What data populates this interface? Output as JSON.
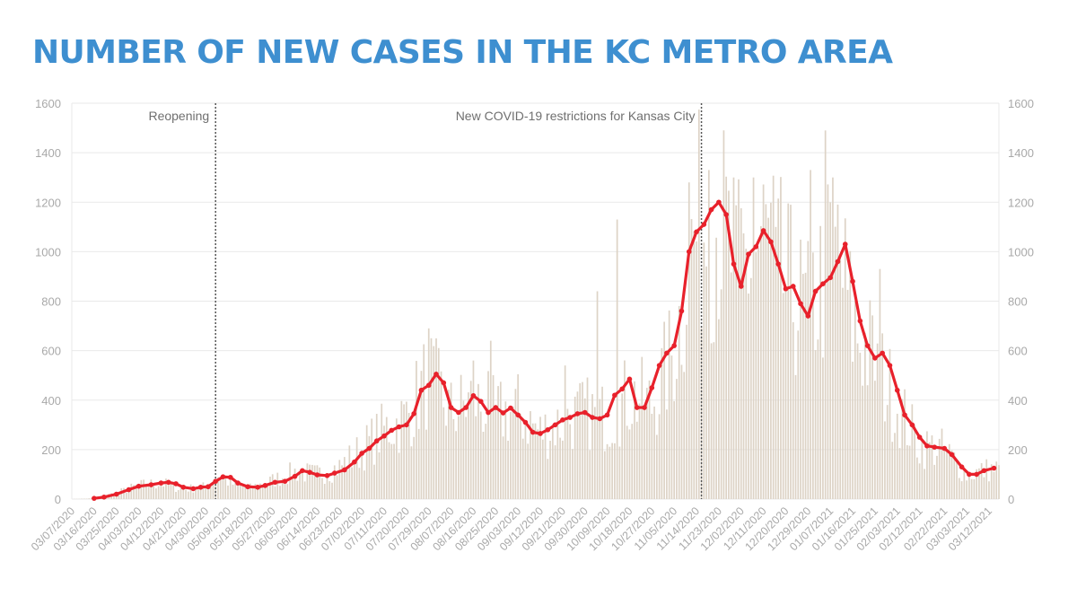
{
  "title": "NUMBER OF NEW CASES IN THE KC METRO AREA",
  "colors": {
    "title": "#3e8fd0",
    "line": "#e8212b",
    "bars": "#ddd3c6",
    "grid": "#e9e9e9",
    "event_line": "#555555"
  },
  "chart_data": {
    "type": "bar+line",
    "title": "NUMBER OF NEW CASES IN THE KC METRO AREA",
    "xlabel": "",
    "ylabel": "",
    "ylim": [
      0,
      1600
    ],
    "yticks": [
      0,
      200,
      400,
      600,
      800,
      1000,
      1200,
      1400,
      1600
    ],
    "y_axis_sides": "left and right",
    "grid": true,
    "x_start": "2020-03-07",
    "x_end": "2021-03-16",
    "xticks": [
      "03/07/2020",
      "03/16/2020",
      "03/25/2020",
      "04/03/2020",
      "04/12/2020",
      "04/21/2020",
      "04/30/2020",
      "05/09/2020",
      "05/18/2020",
      "05/27/2020",
      "06/05/2020",
      "06/14/2020",
      "06/23/2020",
      "07/02/2020",
      "07/11/2020",
      "07/20/2020",
      "07/29/2020",
      "08/07/2020",
      "08/16/2020",
      "08/25/2020",
      "09/03/2020",
      "09/12/2020",
      "09/21/2020",
      "09/30/2020",
      "10/09/2020",
      "10/18/2020",
      "10/27/2020",
      "11/05/2020",
      "11/14/2020",
      "11/23/2020",
      "12/02/2020",
      "12/11/2020",
      "12/20/2020",
      "12/29/2020",
      "01/07/2021",
      "01/16/2021",
      "01/25/2021",
      "02/03/2021",
      "02/12/2021",
      "02/22/2021",
      "03/03/2021",
      "03/12/2021"
    ],
    "annotations": [
      {
        "date": "2020-05-04",
        "label": "Reopening"
      },
      {
        "date": "2020-11-16",
        "label": "New COVID-19 restrictions for Kansas City"
      }
    ],
    "series": [
      {
        "kind": "bar",
        "description": "daily new cases (approximate, read from bars)",
        "anchors": [
          [
            "2020-03-07",
            0
          ],
          [
            "2020-03-16",
            3
          ],
          [
            "2020-03-25",
            25
          ],
          [
            "2020-04-03",
            55
          ],
          [
            "2020-04-12",
            65
          ],
          [
            "2020-04-21",
            40
          ],
          [
            "2020-04-30",
            50
          ],
          [
            "2020-05-05",
            95
          ],
          [
            "2020-05-12",
            55
          ],
          [
            "2020-05-18",
            45
          ],
          [
            "2020-05-27",
            75
          ],
          [
            "2020-06-05",
            110
          ],
          [
            "2020-06-14",
            100
          ],
          [
            "2020-06-23",
            130
          ],
          [
            "2020-07-02",
            200
          ],
          [
            "2020-07-11",
            280
          ],
          [
            "2020-07-20",
            330
          ],
          [
            "2020-07-29",
            500
          ],
          [
            "2020-08-07",
            350
          ],
          [
            "2020-08-16",
            400
          ],
          [
            "2020-08-25",
            340
          ],
          [
            "2020-09-03",
            360
          ],
          [
            "2020-09-12",
            270
          ],
          [
            "2020-09-21",
            310
          ],
          [
            "2020-09-30",
            350
          ],
          [
            "2020-10-09",
            330
          ],
          [
            "2020-10-18",
            420
          ],
          [
            "2020-10-27",
            380
          ],
          [
            "2020-11-05",
            600
          ],
          [
            "2020-11-12",
            1000
          ],
          [
            "2020-11-16",
            1120
          ],
          [
            "2020-11-23",
            1150
          ],
          [
            "2020-11-30",
            900
          ],
          [
            "2020-12-08",
            1000
          ],
          [
            "2020-12-11",
            1060
          ],
          [
            "2020-12-20",
            860
          ],
          [
            "2020-12-29",
            740
          ],
          [
            "2021-01-03",
            870
          ],
          [
            "2021-01-10",
            1000
          ],
          [
            "2021-01-16",
            700
          ],
          [
            "2021-01-25",
            560
          ],
          [
            "2021-02-03",
            380
          ],
          [
            "2021-02-12",
            220
          ],
          [
            "2021-02-22",
            200
          ],
          [
            "2021-03-03",
            100
          ],
          [
            "2021-03-12",
            120
          ],
          [
            "2021-03-16",
            120
          ]
        ],
        "spikes": [
          [
            "2020-07-29",
            690
          ],
          [
            "2020-08-16",
            560
          ],
          [
            "2020-08-23",
            640
          ],
          [
            "2020-09-22",
            540
          ],
          [
            "2020-10-05",
            840
          ],
          [
            "2020-10-13",
            1130
          ],
          [
            "2020-11-11",
            1280
          ],
          [
            "2020-11-19",
            1330
          ],
          [
            "2020-11-29",
            1300
          ],
          [
            "2020-12-07",
            1300
          ],
          [
            "2020-12-16",
            1100
          ],
          [
            "2020-12-30",
            1330
          ],
          [
            "2021-01-05",
            1490
          ],
          [
            "2021-01-08",
            1300
          ],
          [
            "2021-01-27",
            930
          ]
        ]
      },
      {
        "kind": "line",
        "description": "7-day average of new cases (approximate)",
        "points": [
          [
            "2020-03-16",
            3
          ],
          [
            "2020-03-20",
            8
          ],
          [
            "2020-03-25",
            20
          ],
          [
            "2020-03-30",
            38
          ],
          [
            "2020-04-03",
            52
          ],
          [
            "2020-04-08",
            58
          ],
          [
            "2020-04-12",
            65
          ],
          [
            "2020-04-15",
            68
          ],
          [
            "2020-04-18",
            62
          ],
          [
            "2020-04-21",
            48
          ],
          [
            "2020-04-25",
            42
          ],
          [
            "2020-04-28",
            48
          ],
          [
            "2020-05-01",
            50
          ],
          [
            "2020-05-04",
            72
          ],
          [
            "2020-05-07",
            90
          ],
          [
            "2020-05-10",
            88
          ],
          [
            "2020-05-13",
            65
          ],
          [
            "2020-05-17",
            50
          ],
          [
            "2020-05-21",
            48
          ],
          [
            "2020-05-24",
            55
          ],
          [
            "2020-05-28",
            68
          ],
          [
            "2020-06-01",
            72
          ],
          [
            "2020-06-05",
            92
          ],
          [
            "2020-06-08",
            115
          ],
          [
            "2020-06-11",
            108
          ],
          [
            "2020-06-14",
            98
          ],
          [
            "2020-06-18",
            95
          ],
          [
            "2020-06-21",
            105
          ],
          [
            "2020-06-25",
            118
          ],
          [
            "2020-06-29",
            150
          ],
          [
            "2020-07-02",
            185
          ],
          [
            "2020-07-05",
            205
          ],
          [
            "2020-07-08",
            235
          ],
          [
            "2020-07-11",
            255
          ],
          [
            "2020-07-14",
            278
          ],
          [
            "2020-07-17",
            292
          ],
          [
            "2020-07-20",
            300
          ],
          [
            "2020-07-23",
            345
          ],
          [
            "2020-07-26",
            440
          ],
          [
            "2020-07-29",
            460
          ],
          [
            "2020-08-01",
            505
          ],
          [
            "2020-08-04",
            470
          ],
          [
            "2020-08-07",
            370
          ],
          [
            "2020-08-10",
            350
          ],
          [
            "2020-08-13",
            370
          ],
          [
            "2020-08-16",
            418
          ],
          [
            "2020-08-19",
            395
          ],
          [
            "2020-08-22",
            350
          ],
          [
            "2020-08-25",
            370
          ],
          [
            "2020-08-28",
            348
          ],
          [
            "2020-08-31",
            368
          ],
          [
            "2020-09-03",
            340
          ],
          [
            "2020-09-06",
            310
          ],
          [
            "2020-09-09",
            270
          ],
          [
            "2020-09-12",
            265
          ],
          [
            "2020-09-15",
            280
          ],
          [
            "2020-09-18",
            300
          ],
          [
            "2020-09-21",
            320
          ],
          [
            "2020-09-24",
            330
          ],
          [
            "2020-09-27",
            345
          ],
          [
            "2020-09-30",
            350
          ],
          [
            "2020-10-03",
            330
          ],
          [
            "2020-10-06",
            325
          ],
          [
            "2020-10-09",
            340
          ],
          [
            "2020-10-12",
            420
          ],
          [
            "2020-10-15",
            445
          ],
          [
            "2020-10-18",
            485
          ],
          [
            "2020-10-21",
            370
          ],
          [
            "2020-10-24",
            370
          ],
          [
            "2020-10-27",
            450
          ],
          [
            "2020-10-30",
            540
          ],
          [
            "2020-11-02",
            590
          ],
          [
            "2020-11-05",
            620
          ],
          [
            "2020-11-08",
            760
          ],
          [
            "2020-11-11",
            1000
          ],
          [
            "2020-11-14",
            1080
          ],
          [
            "2020-11-17",
            1110
          ],
          [
            "2020-11-20",
            1170
          ],
          [
            "2020-11-23",
            1200
          ],
          [
            "2020-11-26",
            1150
          ],
          [
            "2020-11-29",
            950
          ],
          [
            "2020-12-02",
            860
          ],
          [
            "2020-12-05",
            990
          ],
          [
            "2020-12-08",
            1020
          ],
          [
            "2020-12-11",
            1085
          ],
          [
            "2020-12-14",
            1040
          ],
          [
            "2020-12-17",
            950
          ],
          [
            "2020-12-20",
            850
          ],
          [
            "2020-12-23",
            860
          ],
          [
            "2020-12-26",
            790
          ],
          [
            "2020-12-29",
            740
          ],
          [
            "2021-01-01",
            840
          ],
          [
            "2021-01-04",
            870
          ],
          [
            "2021-01-07",
            895
          ],
          [
            "2021-01-10",
            960
          ],
          [
            "2021-01-13",
            1030
          ],
          [
            "2021-01-16",
            880
          ],
          [
            "2021-01-19",
            720
          ],
          [
            "2021-01-22",
            620
          ],
          [
            "2021-01-25",
            570
          ],
          [
            "2021-01-28",
            590
          ],
          [
            "2021-01-31",
            540
          ],
          [
            "2021-02-03",
            440
          ],
          [
            "2021-02-06",
            340
          ],
          [
            "2021-02-09",
            300
          ],
          [
            "2021-02-12",
            250
          ],
          [
            "2021-02-15",
            215
          ],
          [
            "2021-02-18",
            210
          ],
          [
            "2021-02-22",
            205
          ],
          [
            "2021-02-25",
            180
          ],
          [
            "2021-03-01",
            130
          ],
          [
            "2021-03-04",
            100
          ],
          [
            "2021-03-07",
            100
          ],
          [
            "2021-03-10",
            115
          ],
          [
            "2021-03-14",
            125
          ]
        ]
      }
    ]
  }
}
